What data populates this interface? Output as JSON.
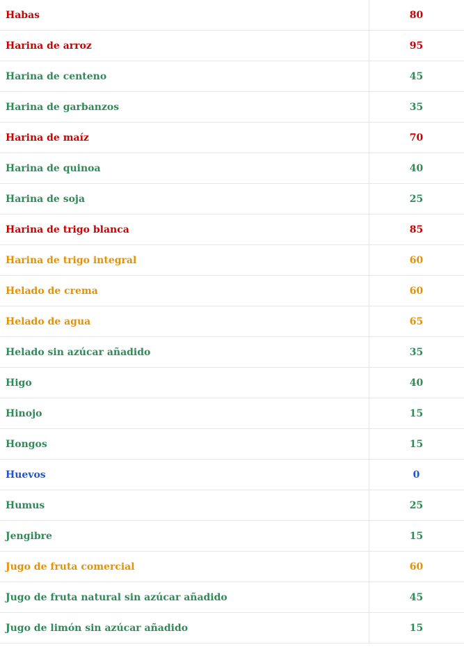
{
  "colors": {
    "high": "#cc0000",
    "medium": "#e69100",
    "low": "#2e8b57",
    "zero": "#2255cc"
  },
  "rows": [
    {
      "food": "Habas",
      "value": "80",
      "level": "high"
    },
    {
      "food": "Harina de arroz",
      "value": "95",
      "level": "high"
    },
    {
      "food": "Harina de centeno",
      "value": "45",
      "level": "low"
    },
    {
      "food": "Harina de garbanzos",
      "value": "35",
      "level": "low"
    },
    {
      "food": "Harina de maíz",
      "value": "70",
      "level": "high"
    },
    {
      "food": "Harina de quinoa",
      "value": "40",
      "level": "low"
    },
    {
      "food": "Harina de soja",
      "value": "25",
      "level": "low"
    },
    {
      "food": "Harina de trigo blanca",
      "value": "85",
      "level": "high"
    },
    {
      "food": "Harina de trigo integral",
      "value": "60",
      "level": "medium"
    },
    {
      "food": "Helado de crema",
      "value": "60",
      "level": "medium"
    },
    {
      "food": "Helado de agua",
      "value": "65",
      "level": "medium"
    },
    {
      "food": "Helado sin azúcar añadido",
      "value": "35",
      "level": "low"
    },
    {
      "food": "Higo",
      "value": "40",
      "level": "low"
    },
    {
      "food": "Hinojo",
      "value": "15",
      "level": "low"
    },
    {
      "food": "Hongos",
      "value": "15",
      "level": "low"
    },
    {
      "food": "Huevos",
      "value": "0",
      "level": "zero"
    },
    {
      "food": "Humus",
      "value": "25",
      "level": "low"
    },
    {
      "food": "Jengibre",
      "value": "15",
      "level": "low"
    },
    {
      "food": "Jugo de fruta comercial",
      "value": "60",
      "level": "medium"
    },
    {
      "food": "Jugo de fruta natural sin azúcar añadido",
      "value": "45",
      "level": "low"
    },
    {
      "food": "Jugo de limón sin azúcar añadido",
      "value": "15",
      "level": "low"
    }
  ]
}
